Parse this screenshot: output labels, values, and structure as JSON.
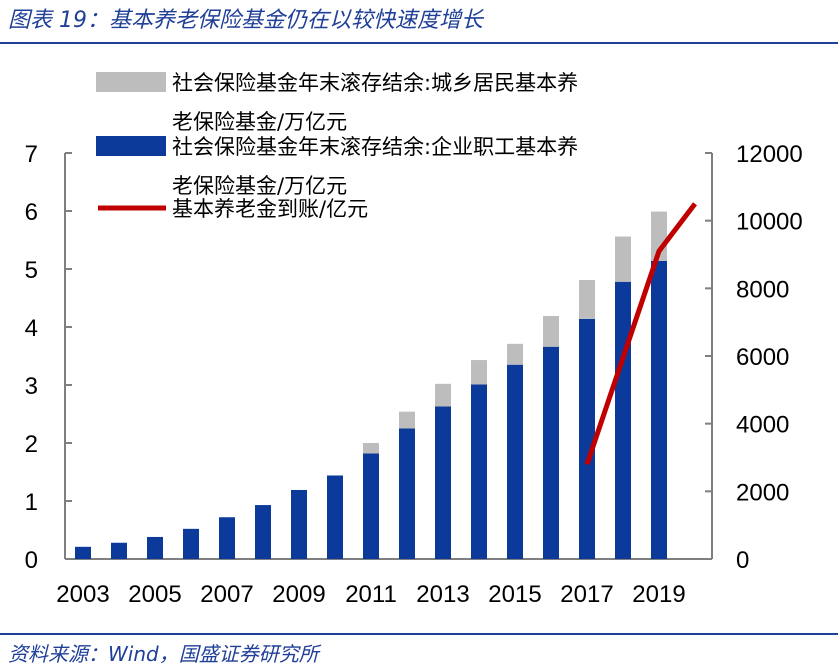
{
  "header": {
    "title": "图表 19：基本养老保险基金仍在以较快速度增长"
  },
  "footer": {
    "source": "资料来源：Wind，国盛证券研究所"
  },
  "chart_data": {
    "type": "bar",
    "categories": [
      "2003",
      "2004",
      "2005",
      "2006",
      "2007",
      "2008",
      "2009",
      "2010",
      "2011",
      "2012",
      "2013",
      "2014",
      "2015",
      "2016",
      "2017",
      "2018",
      "2019",
      "2020"
    ],
    "x_tick_labels": [
      "2003",
      "2005",
      "2007",
      "2009",
      "2011",
      "2013",
      "2015",
      "2017",
      "2019"
    ],
    "series": [
      {
        "name": "社会保险基金年末滚存结余:企业职工基本养老保险基金/万亿元",
        "kind": "stacked-bar",
        "axis": "left",
        "color": "#0b3a9b",
        "values": [
          0.21,
          0.28,
          0.38,
          0.52,
          0.72,
          0.93,
          1.19,
          1.44,
          1.82,
          2.25,
          2.63,
          3.01,
          3.35,
          3.66,
          4.14,
          4.78,
          5.14,
          null
        ]
      },
      {
        "name": "社会保险基金年末滚存结余:城乡居民基本养老保险基金/万亿元",
        "kind": "stacked-bar",
        "axis": "left",
        "color": "#bdbdbd",
        "values": [
          0,
          0,
          0,
          0,
          0,
          0,
          0,
          0,
          0.18,
          0.29,
          0.39,
          0.42,
          0.36,
          0.53,
          0.67,
          0.78,
          0.85,
          null
        ]
      },
      {
        "name": "基本养老金到账/亿元",
        "kind": "line",
        "axis": "right",
        "color": "#c00000",
        "x": [
          "2017",
          "2019",
          "2020"
        ],
        "values": [
          2800,
          9100,
          10500
        ]
      }
    ],
    "legend": [
      {
        "label_line1": "社会保险基金年末滚存结余:城乡居民基本养",
        "label_line2": "老保险基金/万亿元",
        "color": "#bdbdbd",
        "kind": "box"
      },
      {
        "label_line1": "社会保险基金年末滚存结余:企业职工基本养",
        "label_line2": "老保险基金/万亿元",
        "color": "#0b3a9b",
        "kind": "box"
      },
      {
        "label_line1": "基本养老金到账/亿元",
        "label_line2": "",
        "color": "#c00000",
        "kind": "line"
      }
    ],
    "y_left": {
      "ylim": [
        0,
        7
      ],
      "ticks": [
        "0",
        "1",
        "2",
        "3",
        "4",
        "5",
        "6",
        "7"
      ]
    },
    "y_right": {
      "ylim": [
        0,
        12000
      ],
      "ticks": [
        "0",
        "2000",
        "4000",
        "6000",
        "8000",
        "10000",
        "12000"
      ]
    },
    "legend_position": "top-left"
  }
}
